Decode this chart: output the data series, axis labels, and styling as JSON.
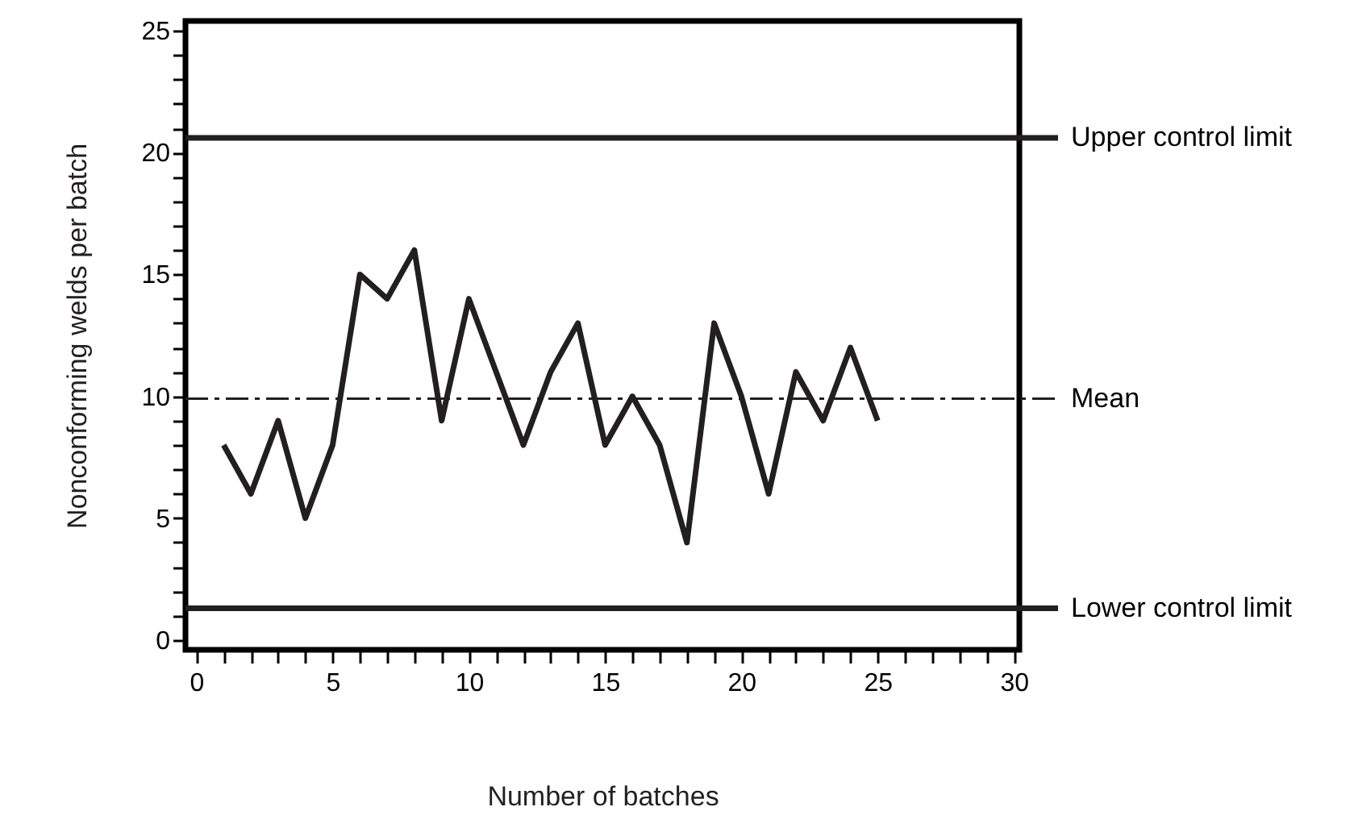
{
  "chart_data": {
    "type": "line",
    "xlabel": "Number of batches",
    "ylabel": "Nonconforming welds per batch",
    "x": [
      1,
      2,
      3,
      4,
      5,
      6,
      7,
      8,
      9,
      10,
      11,
      12,
      13,
      14,
      15,
      16,
      17,
      18,
      19,
      20,
      21,
      22,
      23,
      24,
      25
    ],
    "series": [
      {
        "color": "#231f20",
        "values": [
          8,
          6,
          9,
          5,
          8,
          15,
          14,
          16,
          9,
          14,
          11,
          8,
          11,
          13,
          8,
          10,
          8,
          4,
          13,
          10,
          6,
          11,
          9,
          12,
          9
        ]
      }
    ],
    "xlim": [
      -0.4,
      30.2
    ],
    "ylim": [
      -0.4,
      25.4
    ],
    "xticks": [
      0,
      {
        "value": 1,
        "label": null
      },
      {
        "value": 2,
        "label": null
      },
      {
        "value": 3,
        "label": null
      },
      {
        "value": 4,
        "label": null
      },
      5,
      {
        "value": 6,
        "label": null
      },
      {
        "value": 7,
        "label": null
      },
      {
        "value": 8,
        "label": null
      },
      {
        "value": 9,
        "label": null
      },
      10,
      {
        "value": 11,
        "label": null
      },
      {
        "value": 12,
        "label": null
      },
      {
        "value": 13,
        "label": null
      },
      {
        "value": 14,
        "label": null
      },
      15,
      {
        "value": 16,
        "label": null
      },
      {
        "value": 17,
        "label": null
      },
      {
        "value": 18,
        "label": null
      },
      {
        "value": 19,
        "label": null
      },
      20,
      {
        "value": 21,
        "label": null
      },
      {
        "value": 22,
        "label": null
      },
      {
        "value": 23,
        "label": null
      },
      {
        "value": 24,
        "label": null
      },
      25,
      {
        "value": 26,
        "label": null
      },
      {
        "value": 27,
        "label": null
      },
      {
        "value": 28,
        "label": null
      },
      {
        "value": 29,
        "label": null
      },
      30
    ],
    "yticks": [
      0,
      {
        "value": 1,
        "label": null
      },
      {
        "value": 2,
        "label": null
      },
      {
        "value": 3,
        "label": null
      },
      {
        "value": 4,
        "label": null
      },
      5,
      {
        "value": 6,
        "label": null
      },
      {
        "value": 7,
        "label": null
      },
      {
        "value": 8,
        "label": null
      },
      {
        "value": 9,
        "label": null
      },
      10,
      {
        "value": 11,
        "label": null
      },
      {
        "value": 12,
        "label": null
      },
      {
        "value": 13,
        "label": null
      },
      {
        "value": 14,
        "label": null
      },
      15,
      {
        "value": 16,
        "label": null
      },
      {
        "value": 17,
        "label": null
      },
      {
        "value": 18,
        "label": null
      },
      {
        "value": 19,
        "label": null
      },
      20,
      {
        "value": 21,
        "label": null
      },
      {
        "value": 22,
        "label": null
      },
      {
        "value": 23,
        "label": null
      },
      {
        "value": 24,
        "label": null
      },
      25
    ],
    "ref_lines": [
      {
        "axis": "y",
        "value": 20.6,
        "label": "Upper control limit",
        "color": "#231f20",
        "line_style": "solid"
      },
      {
        "axis": "y",
        "value": 9.9,
        "label": "Mean",
        "color": "#231f20",
        "line_style": "dashdot"
      },
      {
        "axis": "y",
        "value": 1.3,
        "label": "Lower control limit",
        "color": "#231f20",
        "line_style": "solid"
      }
    ],
    "grid": false,
    "marker": "none",
    "line_style": "solid"
  }
}
